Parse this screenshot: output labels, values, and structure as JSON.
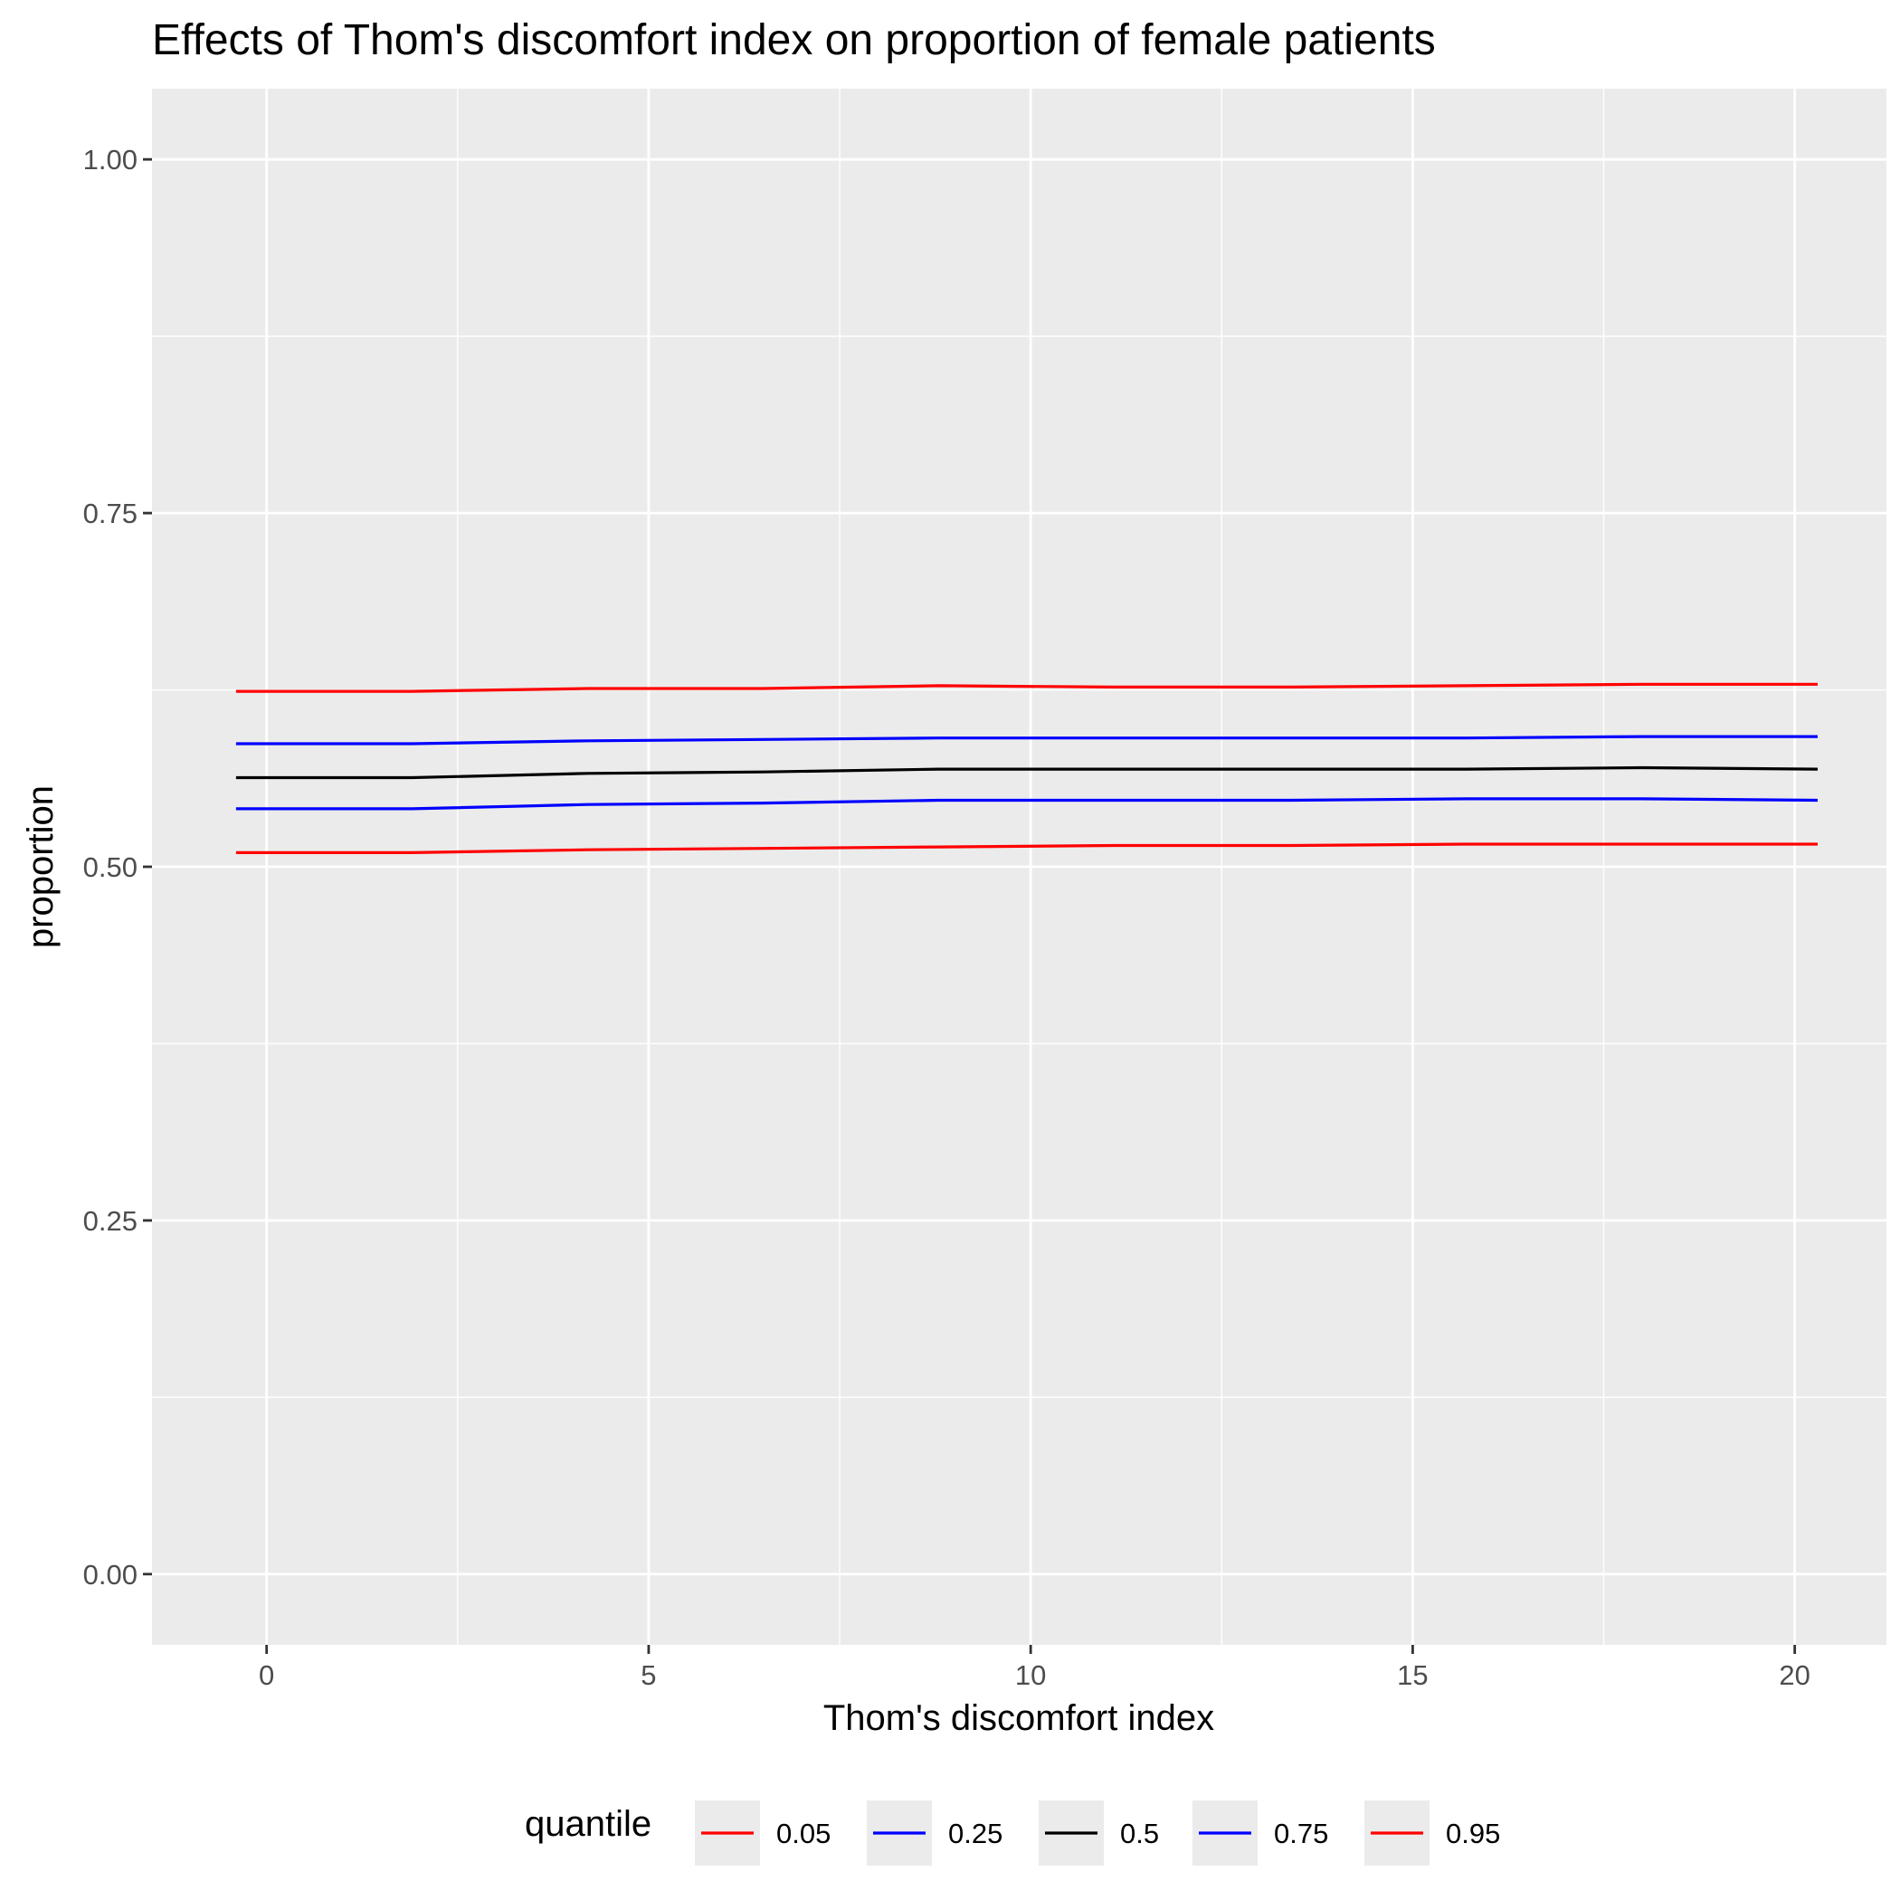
{
  "chart_data": {
    "type": "line",
    "title": "Effects of Thom's discomfort index on proportion of female patients",
    "xlabel": "Thom's discomfort index",
    "ylabel": "proportion",
    "xlim": [
      -1.5,
      21.2
    ],
    "ylim": [
      -0.05,
      1.05
    ],
    "x_ticks": [
      0,
      5,
      10,
      15,
      20
    ],
    "x_tick_labels": [
      "0",
      "5",
      "10",
      "15",
      "20"
    ],
    "y_ticks": [
      0,
      0.25,
      0.5,
      0.75,
      1.0
    ],
    "y_tick_labels": [
      "0.00",
      "0.25",
      "0.50",
      "0.75",
      "1.00"
    ],
    "grid": true,
    "background": "#ebebeb",
    "grid_color": "#ffffff",
    "legend": {
      "title": "quantile",
      "position": "bottom"
    },
    "x": [
      -0.4,
      1.9,
      4.2,
      6.5,
      8.8,
      11.1,
      13.4,
      15.7,
      18.0,
      20.3
    ],
    "series": [
      {
        "name": "0.05",
        "color": "#ff0000",
        "values": [
          0.51,
          0.51,
          0.512,
          0.513,
          0.514,
          0.515,
          0.515,
          0.516,
          0.516,
          0.516
        ]
      },
      {
        "name": "0.25",
        "color": "#0000ff",
        "values": [
          0.541,
          0.541,
          0.544,
          0.545,
          0.547,
          0.547,
          0.547,
          0.548,
          0.548,
          0.547
        ]
      },
      {
        "name": "0.5",
        "color": "#000000",
        "values": [
          0.563,
          0.563,
          0.566,
          0.567,
          0.569,
          0.569,
          0.569,
          0.569,
          0.57,
          0.569
        ]
      },
      {
        "name": "0.75",
        "color": "#0000ff",
        "values": [
          0.587,
          0.587,
          0.589,
          0.59,
          0.591,
          0.591,
          0.591,
          0.591,
          0.592,
          0.592
        ]
      },
      {
        "name": "0.95",
        "color": "#ff0000",
        "values": [
          0.624,
          0.624,
          0.626,
          0.626,
          0.628,
          0.627,
          0.627,
          0.628,
          0.629,
          0.629
        ]
      }
    ]
  }
}
